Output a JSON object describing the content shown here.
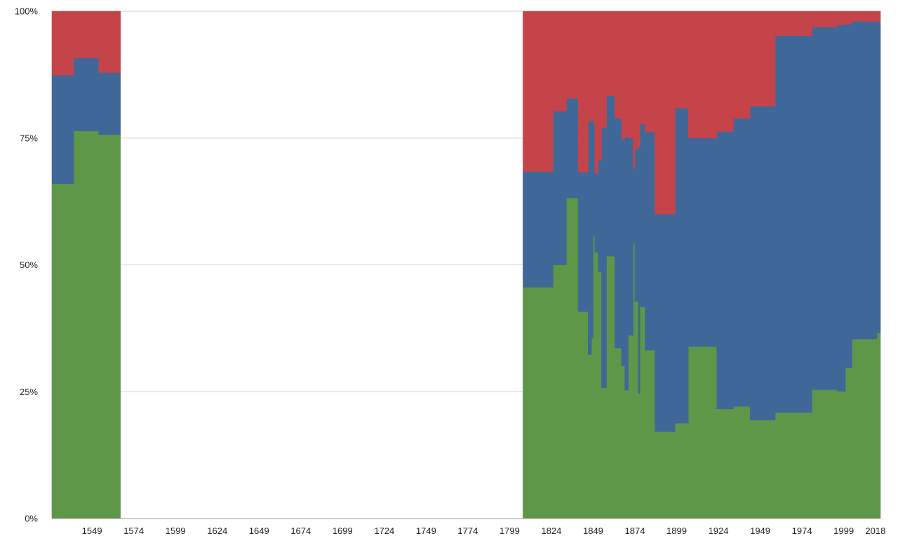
{
  "chart_data": {
    "type": "area",
    "stacking": "percent",
    "step": true,
    "grid": true,
    "xlim": [
      1525,
      2021
    ],
    "ylim": [
      0,
      100
    ],
    "x_ticks": [
      1549,
      1574,
      1599,
      1624,
      1649,
      1674,
      1699,
      1724,
      1749,
      1774,
      1799,
      1824,
      1849,
      1874,
      1899,
      1924,
      1949,
      1974,
      1999,
      2018
    ],
    "y_ticks": [
      "0%",
      "25%",
      "50%",
      "75%",
      "100%"
    ],
    "y_tick_values": [
      0,
      25,
      50,
      75,
      100
    ],
    "colors": [
      "#5f9749",
      "#3f6898",
      "#c5444a"
    ],
    "segments": [
      {
        "x": [
          1525,
          1538,
          1553,
          1566
        ],
        "series": [
          {
            "values": [
              66,
              76.4,
              75.7
            ]
          },
          {
            "values": [
              21.4,
              14.4,
              12.2
            ]
          },
          {
            "values": [
              12.6,
              9.2,
              12.1
            ]
          }
        ]
      },
      {
        "x": [
          1807,
          1825,
          1833,
          1840,
          1846,
          1848,
          1849,
          1850,
          1852,
          1854,
          1857,
          1862,
          1866,
          1868,
          1870,
          1873,
          1874,
          1876,
          1877,
          1880,
          1886,
          1898,
          1906,
          1923,
          1933,
          1943,
          1958,
          1980,
          1995,
          2000,
          2004,
          2019,
          2022
        ],
        "series": [
          {
            "values": [
              45.6,
              50,
              63.2,
              40.8,
              32.3,
              35.6,
              55.6,
              52.5,
              48.7,
              25.8,
              51.7,
              33.6,
              30.1,
              25.3,
              36.1,
              54.3,
              42.8,
              24.6,
              41.7,
              33.2,
              17.1,
              18.8,
              33.9,
              21.6,
              22.1,
              19.4,
              20.9,
              25.4,
              25.1,
              29.7,
              35.4,
              36.6
            ]
          },
          {
            "values": [
              22.8,
              30.3,
              19.6,
              27.5,
              46,
              43.2,
              22.2,
              15.5,
              21.9,
              51.3,
              31.6,
              45.3,
              44.7,
              50,
              38.9,
              14.8,
              30.1,
              48.7,
              36.1,
              43,
              42.9,
              62.1,
              41.1,
              54.7,
              56.8,
              61.9,
              74.3,
              71.5,
              72.2,
              67.8,
              62.6,
              61.4
            ]
          },
          {
            "values": [
              31.6,
              19.7,
              17.2,
              31.7,
              21.7,
              21.2,
              22.2,
              32,
              29.4,
              22.9,
              16.7,
              21.1,
              25.2,
              24.7,
              25,
              30.9,
              27.1,
              26.7,
              22.2,
              23.8,
              40,
              19.1,
              25,
              23.7,
              21.1,
              18.7,
              4.8,
              3.1,
              2.7,
              2.5,
              2,
              2
            ]
          }
        ]
      }
    ]
  }
}
